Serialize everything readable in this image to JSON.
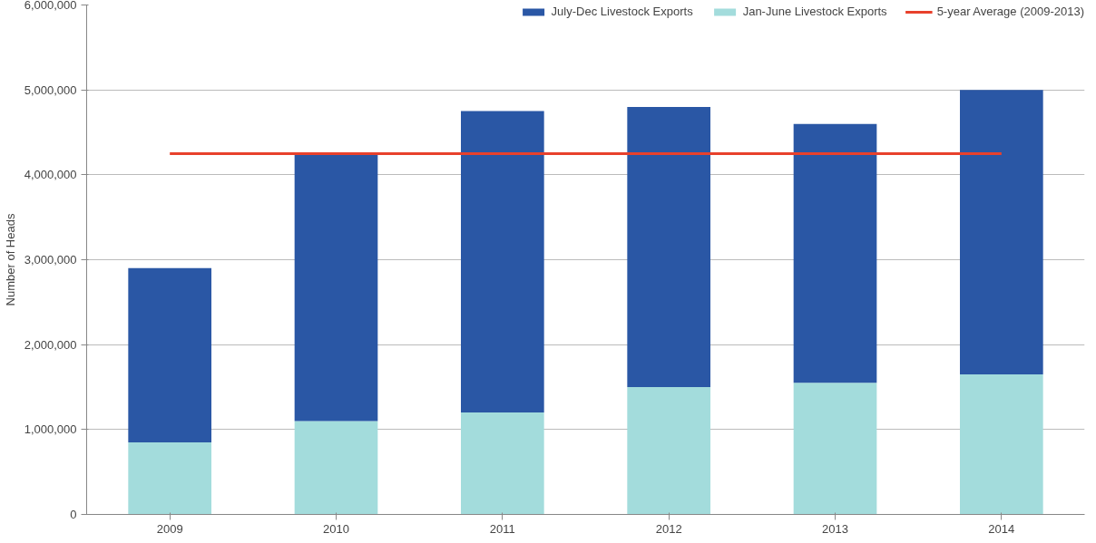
{
  "chart_data": {
    "type": "bar",
    "stacked": true,
    "ylabel": "Number of Heads",
    "categories": [
      "2009",
      "2010",
      "2011",
      "2012",
      "2013",
      "2014"
    ],
    "series": [
      {
        "name": "Jan-June Livestock Exports",
        "color": "#a3dcdc",
        "values": [
          850000,
          1100000,
          1200000,
          1500000,
          1550000,
          1650000
        ]
      },
      {
        "name": "July-Dec Livestock Exports",
        "color": "#2a57a5",
        "values": [
          2050000,
          3150000,
          3550000,
          3300000,
          3050000,
          3350000
        ]
      }
    ],
    "ref_lines": [
      {
        "axis": "y",
        "value": 4250000,
        "label": "5-year Average (2009-2013)",
        "color": "#e8412c",
        "line_style": "solid"
      }
    ],
    "ylim": [
      0,
      6000000
    ],
    "yticks": [
      {
        "value": 0,
        "label": "0"
      },
      {
        "value": 1000000,
        "label": "1,000,000"
      },
      {
        "value": 2000000,
        "label": "2,000,000"
      },
      {
        "value": 3000000,
        "label": "3,000,000"
      },
      {
        "value": 4000000,
        "label": "4,000,000"
      },
      {
        "value": 5000000,
        "label": "5,000,000"
      },
      {
        "value": 6000000,
        "label": "6,000,000"
      }
    ],
    "grid": "y",
    "legend": "top"
  }
}
